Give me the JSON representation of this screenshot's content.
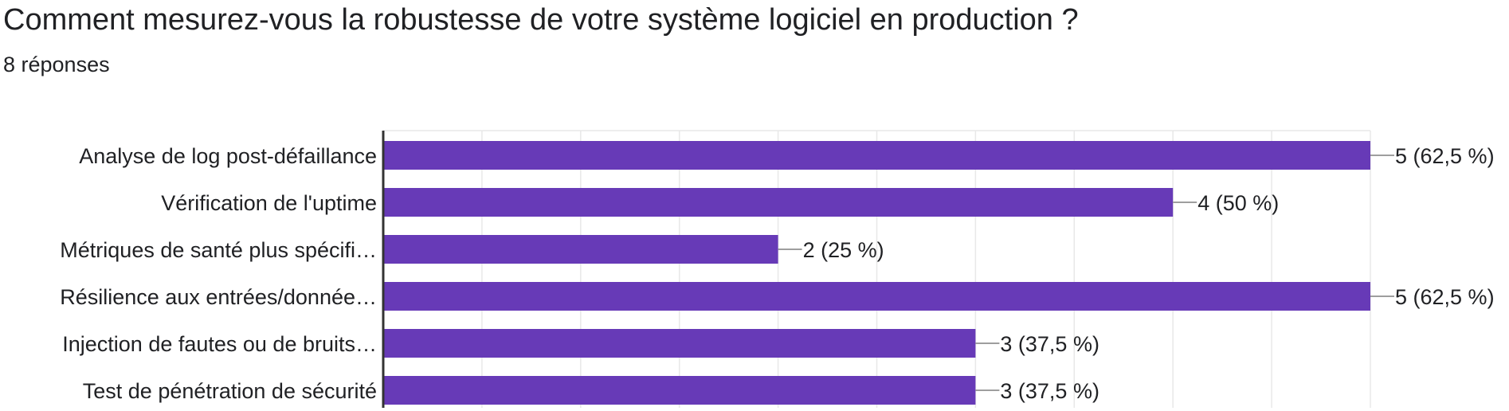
{
  "header": {
    "title": "Comment mesurez-vous la robustesse de votre système logiciel en production ?",
    "responses": "8 réponses"
  },
  "colors": {
    "bar": "#673ab7",
    "grid": "#e8e8e8",
    "axis": "#333333",
    "leader": "#9e9e9e"
  },
  "chart_data": {
    "type": "bar",
    "orientation": "horizontal",
    "title": "Comment mesurez-vous la robustesse de votre système logiciel en production ?",
    "categories": [
      "Analyse de log post-défaillance",
      "Vérification de l'uptime",
      "Métriques de santé plus spécifi…",
      "Résilience aux entrées/donnée…",
      "Injection de fautes ou de bruits…",
      "Test de pénétration de sécurité"
    ],
    "values": [
      5,
      4,
      2,
      5,
      3,
      3
    ],
    "value_labels": [
      "5 (62,5 %)",
      "4 (50 %)",
      "2 (25 %)",
      "5 (62,5 %)",
      "3 (37,5 %)",
      "3 (37,5 %)"
    ],
    "xlim": [
      0,
      5
    ],
    "grid": true,
    "xlabel": "",
    "ylabel": ""
  }
}
